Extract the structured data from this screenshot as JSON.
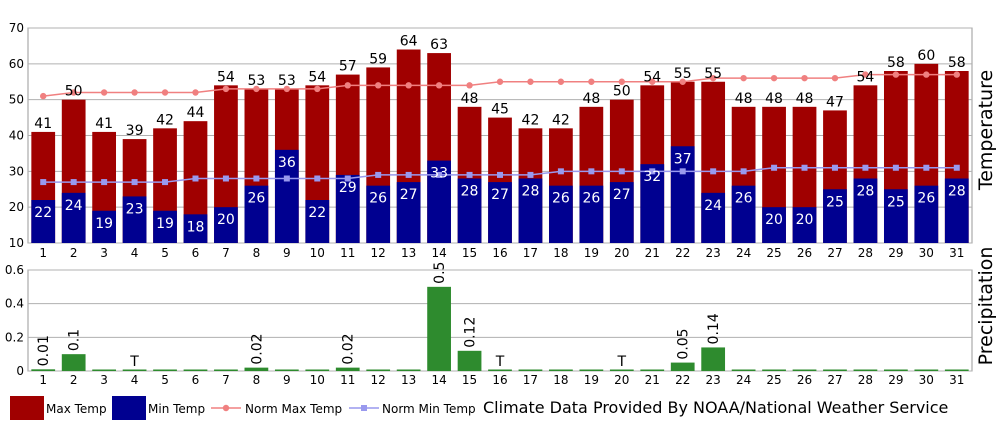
{
  "chart_data": [
    {
      "type": "bar",
      "panel": "temperature",
      "ylabel": "Temperature",
      "ylim": [
        10,
        70
      ],
      "yticks": [
        10,
        20,
        30,
        40,
        50,
        60,
        70
      ],
      "grid": true,
      "categories": [
        "1",
        "2",
        "3",
        "4",
        "5",
        "6",
        "7",
        "8",
        "9",
        "10",
        "11",
        "12",
        "13",
        "14",
        "15",
        "16",
        "17",
        "18",
        "19",
        "20",
        "21",
        "22",
        "23",
        "24",
        "25",
        "26",
        "27",
        "28",
        "29",
        "30",
        "31"
      ],
      "series": [
        {
          "name": "Max Temp",
          "kind": "bar",
          "color": "#a00000",
          "values": [
            41,
            50,
            41,
            39,
            42,
            44,
            54,
            53,
            53,
            54,
            57,
            59,
            64,
            63,
            48,
            45,
            42,
            42,
            48,
            50,
            54,
            55,
            55,
            48,
            48,
            48,
            47,
            54,
            58,
            60,
            58
          ]
        },
        {
          "name": "Min Temp",
          "kind": "bar",
          "color": "#000090",
          "values": [
            22,
            24,
            19,
            23,
            19,
            18,
            20,
            26,
            36,
            22,
            29,
            26,
            27,
            33,
            28,
            27,
            28,
            26,
            26,
            27,
            32,
            37,
            24,
            26,
            20,
            20,
            25,
            28,
            25,
            26,
            28
          ]
        },
        {
          "name": "Norm Max Temp",
          "kind": "line",
          "color": "#f08080",
          "values": [
            51,
            52,
            52,
            52,
            52,
            52,
            53,
            53,
            53,
            53,
            54,
            54,
            54,
            54,
            54,
            55,
            55,
            55,
            55,
            55,
            55,
            55,
            56,
            56,
            56,
            56,
            56,
            57,
            57,
            57,
            57
          ]
        },
        {
          "name": "Norm Min Temp",
          "kind": "line",
          "color": "#9999ee",
          "values": [
            27,
            27,
            27,
            27,
            27,
            28,
            28,
            28,
            28,
            28,
            28,
            29,
            29,
            29,
            29,
            29,
            29,
            30,
            30,
            30,
            30,
            30,
            30,
            30,
            31,
            31,
            31,
            31,
            31,
            31,
            31
          ]
        }
      ]
    },
    {
      "type": "bar",
      "panel": "precipitation",
      "ylabel": "Precipitation",
      "ylim": [
        0,
        0.6
      ],
      "yticks": [
        "0",
        "0.2",
        "0.4",
        "0.6"
      ],
      "grid": true,
      "categories": [
        "1",
        "2",
        "3",
        "4",
        "5",
        "6",
        "7",
        "8",
        "9",
        "10",
        "11",
        "12",
        "13",
        "14",
        "15",
        "16",
        "17",
        "18",
        "19",
        "20",
        "21",
        "22",
        "23",
        "24",
        "25",
        "26",
        "27",
        "28",
        "29",
        "30",
        "31"
      ],
      "series": [
        {
          "name": "Precipitation",
          "kind": "bar",
          "color": "#2e8b2e",
          "values": [
            0.01,
            0.1,
            0,
            0,
            0,
            0,
            0,
            0.02,
            0,
            0,
            0.02,
            0,
            0,
            0.5,
            0.12,
            0,
            0,
            0,
            0,
            0,
            0,
            0.05,
            0.14,
            0,
            0,
            0,
            0,
            0,
            0,
            0,
            0
          ],
          "labels": [
            "0.01",
            "0.1",
            "",
            "T",
            "",
            "",
            "",
            "0.02",
            "",
            "",
            "0.02",
            "",
            "",
            "0.5",
            "0.12",
            "T",
            "",
            "",
            "",
            "T",
            "",
            "0.05",
            "0.14",
            "",
            "",
            "",
            "",
            "",
            "",
            "",
            ""
          ]
        }
      ]
    }
  ],
  "legend": [
    {
      "label": "Max Temp",
      "shape": "box",
      "color": "#a00000"
    },
    {
      "label": "Min Temp",
      "shape": "box",
      "color": "#000090"
    },
    {
      "label": "Norm Max Temp",
      "shape": "line-dot",
      "color": "#f08080"
    },
    {
      "label": "Norm Min Temp",
      "shape": "line-square",
      "color": "#9999ee"
    }
  ],
  "credit": "Climate Data Provided By NOAA/National Weather Service"
}
